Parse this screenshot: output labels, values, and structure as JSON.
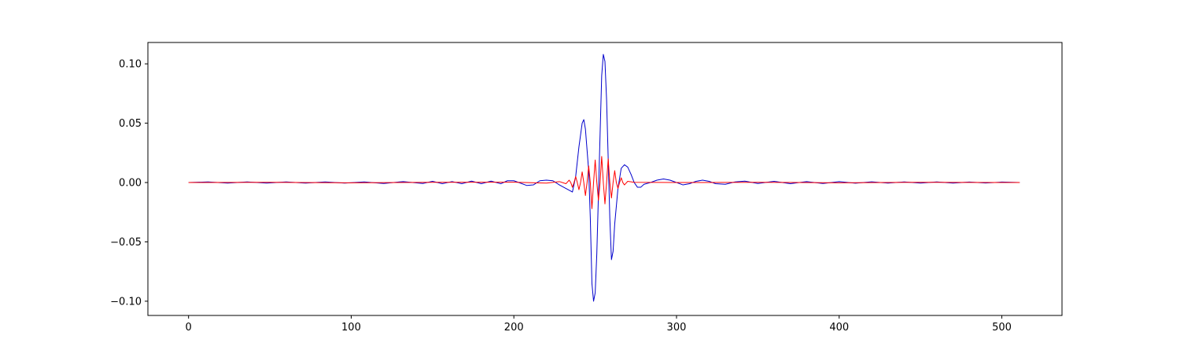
{
  "chart_data": {
    "type": "line",
    "title": "",
    "xlabel": "",
    "ylabel": "",
    "xlim": [
      -25,
      537
    ],
    "ylim": [
      -0.112,
      0.118
    ],
    "grid": false,
    "legend": "none",
    "x_ticks": [
      {
        "value": 0,
        "label": "0"
      },
      {
        "value": 100,
        "label": "100"
      },
      {
        "value": 200,
        "label": "200"
      },
      {
        "value": 300,
        "label": "300"
      },
      {
        "value": 400,
        "label": "400"
      },
      {
        "value": 500,
        "label": "500"
      }
    ],
    "y_ticks": [
      {
        "value": -0.1,
        "label": "−0.10"
      },
      {
        "value": -0.05,
        "label": "−0.05"
      },
      {
        "value": 0.0,
        "label": "0.00"
      },
      {
        "value": 0.05,
        "label": "0.05"
      },
      {
        "value": 0.1,
        "label": "0.10"
      }
    ],
    "series": [
      {
        "color": "#0000cc",
        "points": [
          [
            0,
            0.0
          ],
          [
            12,
            0.0005
          ],
          [
            24,
            -0.0005
          ],
          [
            36,
            0.0005
          ],
          [
            48,
            -0.0005
          ],
          [
            60,
            0.0005
          ],
          [
            72,
            -0.0005
          ],
          [
            84,
            0.0005
          ],
          [
            96,
            -0.0005
          ],
          [
            108,
            0.0005
          ],
          [
            120,
            -0.0008
          ],
          [
            132,
            0.0008
          ],
          [
            144,
            -0.0008
          ],
          [
            150,
            0.001
          ],
          [
            156,
            -0.001
          ],
          [
            162,
            0.0008
          ],
          [
            168,
            -0.001
          ],
          [
            174,
            0.0012
          ],
          [
            180,
            -0.001
          ],
          [
            186,
            0.0012
          ],
          [
            192,
            -0.001
          ],
          [
            196,
            0.0015
          ],
          [
            200,
            0.0015
          ],
          [
            204,
            -0.0005
          ],
          [
            208,
            -0.0025
          ],
          [
            212,
            -0.002
          ],
          [
            216,
            0.0015
          ],
          [
            220,
            0.002
          ],
          [
            224,
            0.0015
          ],
          [
            228,
            -0.002
          ],
          [
            232,
            -0.005
          ],
          [
            236,
            -0.008
          ],
          [
            238,
            0.005
          ],
          [
            240,
            0.03
          ],
          [
            242,
            0.05
          ],
          [
            243,
            0.053
          ],
          [
            244,
            0.045
          ],
          [
            246,
            0.01
          ],
          [
            247,
            -0.03
          ],
          [
            248,
            -0.085
          ],
          [
            249,
            -0.1
          ],
          [
            250,
            -0.093
          ],
          [
            251,
            -0.06
          ],
          [
            252,
            -0.01
          ],
          [
            253,
            0.04
          ],
          [
            254,
            0.09
          ],
          [
            255,
            0.108
          ],
          [
            256,
            0.102
          ],
          [
            257,
            0.07
          ],
          [
            258,
            0.02
          ],
          [
            259,
            -0.03
          ],
          [
            260,
            -0.065
          ],
          [
            261,
            -0.058
          ],
          [
            262,
            -0.035
          ],
          [
            264,
            -0.005
          ],
          [
            266,
            0.012
          ],
          [
            268,
            0.015
          ],
          [
            270,
            0.013
          ],
          [
            272,
            0.007
          ],
          [
            274,
            0.0
          ],
          [
            276,
            -0.004
          ],
          [
            278,
            -0.004
          ],
          [
            280,
            -0.0015
          ],
          [
            284,
            0.0
          ],
          [
            288,
            0.002
          ],
          [
            292,
            0.003
          ],
          [
            296,
            0.002
          ],
          [
            300,
            0.0
          ],
          [
            304,
            -0.002
          ],
          [
            308,
            -0.001
          ],
          [
            312,
            0.001
          ],
          [
            316,
            0.002
          ],
          [
            320,
            0.001
          ],
          [
            324,
            -0.001
          ],
          [
            330,
            -0.0015
          ],
          [
            336,
            0.0005
          ],
          [
            342,
            0.0012
          ],
          [
            350,
            -0.0008
          ],
          [
            360,
            0.001
          ],
          [
            370,
            -0.001
          ],
          [
            380,
            0.0008
          ],
          [
            390,
            -0.0008
          ],
          [
            400,
            0.0008
          ],
          [
            410,
            -0.0006
          ],
          [
            420,
            0.0006
          ],
          [
            430,
            -0.0005
          ],
          [
            440,
            0.0005
          ],
          [
            450,
            -0.0005
          ],
          [
            460,
            0.0005
          ],
          [
            470,
            -0.0005
          ],
          [
            480,
            0.0004
          ],
          [
            490,
            -0.0004
          ],
          [
            500,
            0.0004
          ],
          [
            511,
            0.0
          ]
        ]
      },
      {
        "color": "#ff0000",
        "points": [
          [
            0,
            0.0
          ],
          [
            50,
            0.0002
          ],
          [
            100,
            -0.0002
          ],
          [
            150,
            0.0002
          ],
          [
            200,
            0.0003
          ],
          [
            220,
            -0.0005
          ],
          [
            228,
            0.0008
          ],
          [
            232,
            -0.001
          ],
          [
            234,
            0.002
          ],
          [
            235,
            0.0
          ],
          [
            236,
            -0.004
          ],
          [
            237,
            0.0
          ],
          [
            238,
            0.005
          ],
          [
            239,
            0.0
          ],
          [
            240,
            -0.006
          ],
          [
            241,
            0.0
          ],
          [
            242,
            0.009
          ],
          [
            243,
            0.0
          ],
          [
            244,
            -0.011
          ],
          [
            245,
            0.0
          ],
          [
            246,
            0.014
          ],
          [
            247,
            0.0
          ],
          [
            248,
            -0.022
          ],
          [
            249,
            0.0
          ],
          [
            250,
            0.019
          ],
          [
            251,
            0.0
          ],
          [
            252,
            -0.015
          ],
          [
            253,
            0.0
          ],
          [
            254,
            0.022
          ],
          [
            255,
            0.0
          ],
          [
            256,
            -0.018
          ],
          [
            257,
            0.0
          ],
          [
            258,
            0.02
          ],
          [
            259,
            0.0
          ],
          [
            260,
            -0.013
          ],
          [
            261,
            0.0
          ],
          [
            262,
            0.01
          ],
          [
            263,
            0.0
          ],
          [
            264,
            -0.005
          ],
          [
            265,
            0.0
          ],
          [
            266,
            0.004
          ],
          [
            267,
            0.0
          ],
          [
            268,
            -0.002
          ],
          [
            270,
            0.001
          ],
          [
            274,
            0.0002
          ],
          [
            300,
            0.0
          ],
          [
            350,
            0.0002
          ],
          [
            400,
            -0.0002
          ],
          [
            450,
            0.0002
          ],
          [
            511,
            0.0
          ]
        ]
      }
    ]
  }
}
